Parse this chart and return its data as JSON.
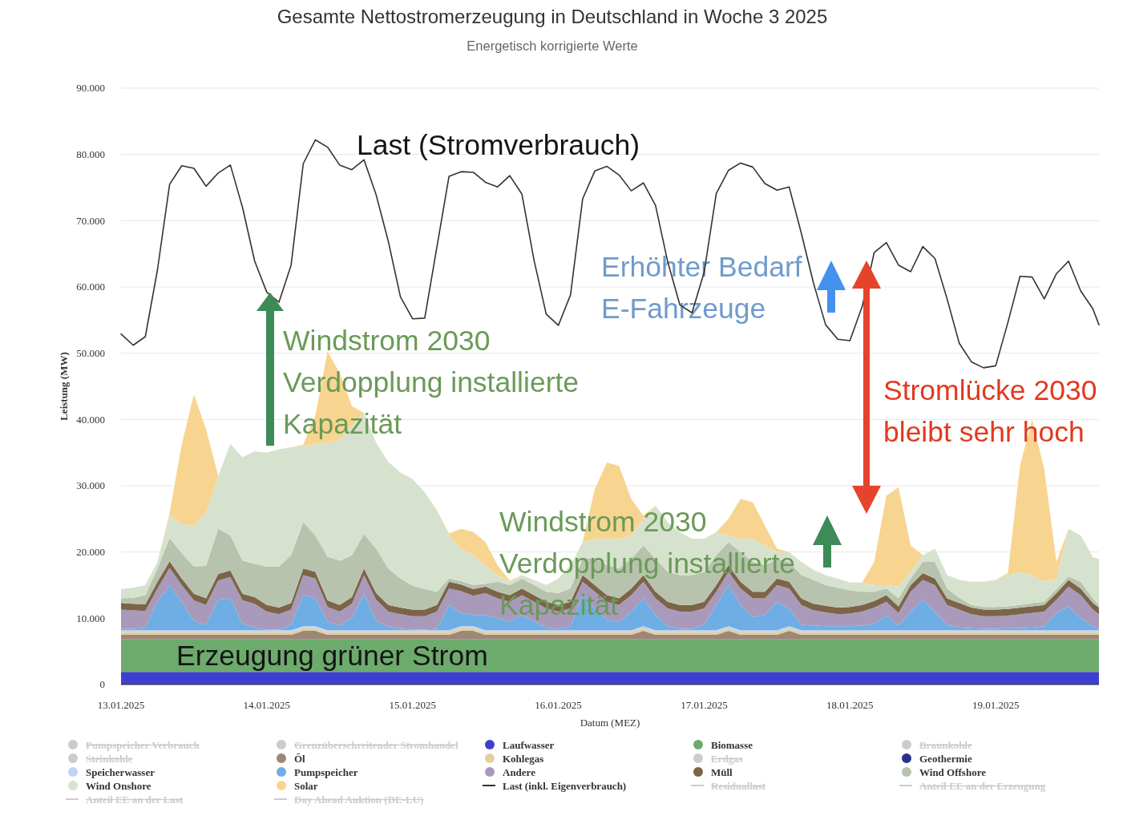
{
  "chart_data": {
    "type": "area",
    "title": "Gesamte Nettostromerzeugung in Deutschland in Woche 3 2025",
    "subtitle": "Energetisch korrigierte Werte",
    "xlabel": "Datum (MEZ)",
    "ylabel": "Leistung (MW)",
    "x": [
      "2025-01-13T00:00",
      "2025-01-13T02:00",
      "2025-01-13T04:00",
      "2025-01-13T06:00",
      "2025-01-13T08:00",
      "2025-01-13T10:00",
      "2025-01-13T12:00",
      "2025-01-13T14:00",
      "2025-01-13T16:00",
      "2025-01-13T18:00",
      "2025-01-13T20:00",
      "2025-01-13T22:00",
      "2025-01-14T00:00",
      "2025-01-14T02:00",
      "2025-01-14T04:00",
      "2025-01-14T06:00",
      "2025-01-14T08:00",
      "2025-01-14T10:00",
      "2025-01-14T12:00",
      "2025-01-14T14:00",
      "2025-01-14T16:00",
      "2025-01-14T18:00",
      "2025-01-14T20:00",
      "2025-01-14T22:00",
      "2025-01-15T00:00",
      "2025-01-15T02:00",
      "2025-01-15T04:00",
      "2025-01-15T06:00",
      "2025-01-15T08:00",
      "2025-01-15T10:00",
      "2025-01-15T12:00",
      "2025-01-15T14:00",
      "2025-01-15T16:00",
      "2025-01-15T18:00",
      "2025-01-15T20:00",
      "2025-01-15T22:00",
      "2025-01-16T00:00",
      "2025-01-16T02:00",
      "2025-01-16T04:00",
      "2025-01-16T06:00",
      "2025-01-16T08:00",
      "2025-01-16T10:00",
      "2025-01-16T12:00",
      "2025-01-16T14:00",
      "2025-01-16T16:00",
      "2025-01-16T18:00",
      "2025-01-16T20:00",
      "2025-01-16T22:00",
      "2025-01-17T00:00",
      "2025-01-17T02:00",
      "2025-01-17T04:00",
      "2025-01-17T06:00",
      "2025-01-17T08:00",
      "2025-01-17T10:00",
      "2025-01-17T12:00",
      "2025-01-17T14:00",
      "2025-01-17T16:00",
      "2025-01-17T18:00",
      "2025-01-17T20:00",
      "2025-01-17T22:00",
      "2025-01-18T00:00",
      "2025-01-18T02:00",
      "2025-01-18T04:00",
      "2025-01-18T06:00",
      "2025-01-18T08:00",
      "2025-01-18T10:00",
      "2025-01-18T12:00",
      "2025-01-18T14:00",
      "2025-01-18T16:00",
      "2025-01-18T18:00",
      "2025-01-18T20:00",
      "2025-01-18T22:00",
      "2025-01-19T00:00",
      "2025-01-19T02:00",
      "2025-01-19T04:00",
      "2025-01-19T06:00",
      "2025-01-19T08:00",
      "2025-01-19T10:00",
      "2025-01-19T12:00",
      "2025-01-19T14:00",
      "2025-01-19T16:00",
      "2025-01-19T17:00"
    ],
    "xlim": [
      "2025-01-13T00:00",
      "2025-01-19T17:00"
    ],
    "xticks": [
      {
        "value": "2025-01-13",
        "label": "13.01.2025"
      },
      {
        "value": "2025-01-14",
        "label": "14.01.2025"
      },
      {
        "value": "2025-01-15",
        "label": "15.01.2025"
      },
      {
        "value": "2025-01-16",
        "label": "16.01.2025"
      },
      {
        "value": "2025-01-17",
        "label": "17.01.2025"
      },
      {
        "value": "2025-01-18",
        "label": "18.01.2025"
      },
      {
        "value": "2025-01-19",
        "label": "19.01.2025"
      }
    ],
    "ylim": [
      0,
      90000
    ],
    "yticks": [
      0,
      {
        "value": 10000,
        "label": "10.000"
      },
      {
        "value": 20000,
        "label": "20.000"
      },
      {
        "value": 30000,
        "label": "30.000"
      },
      {
        "value": 40000,
        "label": "40.000"
      },
      {
        "value": 50000,
        "label": "50.000"
      },
      {
        "value": 60000,
        "label": "60.000"
      },
      {
        "value": 70000,
        "label": "70.000"
      },
      {
        "value": 80000,
        "label": "80.000"
      },
      {
        "value": 90000,
        "label": "90.000"
      }
    ],
    "grid": "y",
    "legend": "bottom",
    "stacked": true,
    "series": [
      {
        "name": "Pumpspeicher Verbrauch",
        "color": "#cccccc",
        "values": [
          null,
          null,
          null,
          null,
          null,
          null,
          null,
          null,
          null,
          null,
          null,
          null,
          null,
          null,
          null,
          null,
          null,
          null,
          null,
          null,
          null,
          null,
          null,
          null,
          null,
          null,
          null,
          null,
          null,
          null,
          null,
          null,
          null,
          null,
          null,
          null,
          null,
          null,
          null,
          null,
          null,
          null,
          null,
          null,
          null,
          null,
          null,
          null,
          null,
          null,
          null,
          null,
          null,
          null,
          null,
          null,
          null,
          null,
          null,
          null,
          null,
          null,
          null,
          null,
          null,
          null,
          null,
          null,
          null,
          null,
          null,
          null,
          null,
          null,
          null,
          null,
          null,
          null,
          null,
          null,
          null,
          null
        ]
      },
      {
        "name": "Grenzüberschreitender Stromhandel",
        "color": "#cccccc",
        "values": [
          null,
          null,
          null,
          null,
          null,
          null,
          null,
          null,
          null,
          null,
          null,
          null,
          null,
          null,
          null,
          null,
          null,
          null,
          null,
          null,
          null,
          null,
          null,
          null,
          null,
          null,
          null,
          null,
          null,
          null,
          null,
          null,
          null,
          null,
          null,
          null,
          null,
          null,
          null,
          null,
          null,
          null,
          null,
          null,
          null,
          null,
          null,
          null,
          null,
          null,
          null,
          null,
          null,
          null,
          null,
          null,
          null,
          null,
          null,
          null,
          null,
          null,
          null,
          null,
          null,
          null,
          null,
          null,
          null,
          null,
          null,
          null,
          null,
          null,
          null,
          null,
          null,
          null,
          null,
          null,
          null,
          null
        ]
      },
      {
        "name": "Laufwasser",
        "color": "#3f3fcf",
        "values": [
          1900,
          1900,
          1900,
          1900,
          1900,
          1900,
          1900,
          1900,
          1900,
          1900,
          1900,
          1900,
          1900,
          1900,
          1900,
          1900,
          1900,
          1900,
          1900,
          1900,
          1900,
          1900,
          1900,
          1900,
          1900,
          1900,
          1900,
          1900,
          1900,
          1900,
          1900,
          1900,
          1900,
          1900,
          1900,
          1900,
          1900,
          1900,
          1900,
          1900,
          1900,
          1900,
          1900,
          1900,
          1900,
          1900,
          1900,
          1900,
          1900,
          1900,
          1900,
          1900,
          1900,
          1900,
          1900,
          1900,
          1900,
          1900,
          1900,
          1900,
          1900,
          1900,
          1900,
          1900,
          1900,
          1900,
          1900,
          1900,
          1900,
          1900,
          1900,
          1900,
          1900,
          1900,
          1900,
          1900,
          1900,
          1900,
          1900,
          1900,
          1900,
          1900
        ]
      },
      {
        "name": "Biomasse",
        "color": "#6dab6d",
        "values": [
          4900,
          4900,
          4900,
          4900,
          4900,
          4900,
          4900,
          4900,
          4900,
          4900,
          4900,
          4900,
          4900,
          4900,
          4900,
          4900,
          4900,
          4900,
          4900,
          4900,
          4900,
          4900,
          4900,
          4900,
          4900,
          4900,
          4900,
          4900,
          4900,
          4900,
          4900,
          4900,
          4900,
          4900,
          4900,
          4900,
          4900,
          4900,
          4900,
          4900,
          4900,
          4900,
          4900,
          4900,
          4900,
          4900,
          4900,
          4900,
          4900,
          4900,
          4900,
          4900,
          4900,
          4900,
          4900,
          4900,
          4900,
          4900,
          4900,
          4900,
          4900,
          4900,
          4900,
          4900,
          4900,
          4900,
          4900,
          4900,
          4900,
          4900,
          4900,
          4900,
          4900,
          4900,
          4900,
          4900,
          4900,
          4900,
          4900,
          4900,
          4900,
          4900
        ]
      },
      {
        "name": "Braunkohle",
        "color": "#cccccc",
        "values": [
          null,
          null,
          null,
          null,
          null,
          null,
          null,
          null,
          null,
          null,
          null,
          null,
          null,
          null,
          null,
          null,
          null,
          null,
          null,
          null,
          null,
          null,
          null,
          null,
          null,
          null,
          null,
          null,
          null,
          null,
          null,
          null,
          null,
          null,
          null,
          null,
          null,
          null,
          null,
          null,
          null,
          null,
          null,
          null,
          null,
          null,
          null,
          null,
          null,
          null,
          null,
          null,
          null,
          null,
          null,
          null,
          null,
          null,
          null,
          null,
          null,
          null,
          null,
          null,
          null,
          null,
          null,
          null,
          null,
          null,
          null,
          null,
          null,
          null,
          null,
          null,
          null,
          null,
          null,
          null,
          null,
          null
        ]
      },
      {
        "name": "Steinkohle",
        "color": "#cccccc",
        "values": [
          null,
          null,
          null,
          null,
          null,
          null,
          null,
          null,
          null,
          null,
          null,
          null,
          null,
          null,
          null,
          null,
          null,
          null,
          null,
          null,
          null,
          null,
          null,
          null,
          null,
          null,
          null,
          null,
          null,
          null,
          null,
          null,
          null,
          null,
          null,
          null,
          null,
          null,
          null,
          null,
          null,
          null,
          null,
          null,
          null,
          null,
          null,
          null,
          null,
          null,
          null,
          null,
          null,
          null,
          null,
          null,
          null,
          null,
          null,
          null,
          null,
          null,
          null,
          null,
          null,
          null,
          null,
          null,
          null,
          null,
          null,
          null,
          null,
          null,
          null,
          null,
          null,
          null,
          null,
          null,
          null,
          null
        ]
      },
      {
        "name": "Öl",
        "color": "#9c8878",
        "values": [
          700,
          700,
          700,
          700,
          700,
          700,
          700,
          700,
          700,
          700,
          700,
          700,
          700,
          700,
          700,
          1300,
          1300,
          700,
          700,
          700,
          700,
          700,
          700,
          700,
          700,
          700,
          700,
          700,
          1300,
          1300,
          700,
          700,
          700,
          700,
          700,
          700,
          700,
          700,
          700,
          700,
          700,
          700,
          700,
          1300,
          700,
          700,
          700,
          700,
          700,
          700,
          1300,
          700,
          700,
          700,
          700,
          1300,
          700,
          700,
          700,
          700,
          700,
          700,
          700,
          700,
          700,
          700,
          700,
          700,
          700,
          700,
          700,
          700,
          700,
          700,
          700,
          700,
          700,
          700,
          700,
          700,
          700,
          700
        ]
      },
      {
        "name": "Kohlegas",
        "color": "#e3cf9c",
        "values": [
          400,
          400,
          400,
          400,
          400,
          400,
          400,
          400,
          400,
          400,
          400,
          400,
          400,
          400,
          400,
          400,
          400,
          400,
          400,
          400,
          400,
          400,
          400,
          400,
          400,
          400,
          400,
          400,
          400,
          400,
          400,
          400,
          400,
          400,
          400,
          400,
          400,
          400,
          400,
          400,
          400,
          400,
          400,
          400,
          400,
          400,
          400,
          400,
          400,
          400,
          400,
          400,
          400,
          400,
          400,
          400,
          400,
          400,
          400,
          400,
          400,
          400,
          400,
          400,
          400,
          400,
          400,
          400,
          400,
          400,
          400,
          400,
          400,
          400,
          400,
          400,
          400,
          400,
          400,
          400,
          400,
          400
        ]
      },
      {
        "name": "Erdgas",
        "color": "#cccccc",
        "values": [
          null,
          null,
          null,
          null,
          null,
          null,
          null,
          null,
          null,
          null,
          null,
          null,
          null,
          null,
          null,
          null,
          null,
          null,
          null,
          null,
          null,
          null,
          null,
          null,
          null,
          null,
          null,
          null,
          null,
          null,
          null,
          null,
          null,
          null,
          null,
          null,
          null,
          null,
          null,
          null,
          null,
          null,
          null,
          null,
          null,
          null,
          null,
          null,
          null,
          null,
          null,
          null,
          null,
          null,
          null,
          null,
          null,
          null,
          null,
          null,
          null,
          null,
          null,
          null,
          null,
          null,
          null,
          null,
          null,
          null,
          null,
          null,
          null,
          null,
          null,
          null,
          null,
          null,
          null,
          null,
          null,
          null
        ]
      },
      {
        "name": "Geothermie",
        "color": "#2b2f8c",
        "values": [
          null,
          null,
          null,
          null,
          null,
          null,
          null,
          null,
          null,
          null,
          null,
          null,
          null,
          null,
          null,
          null,
          null,
          null,
          null,
          null,
          null,
          null,
          null,
          null,
          null,
          null,
          null,
          null,
          null,
          null,
          null,
          null,
          null,
          null,
          null,
          null,
          null,
          null,
          null,
          null,
          null,
          null,
          null,
          null,
          null,
          null,
          null,
          null,
          null,
          null,
          null,
          null,
          null,
          null,
          null,
          null,
          null,
          null,
          null,
          null,
          null,
          null,
          null,
          null,
          null,
          null,
          null,
          null,
          null,
          null,
          null,
          null,
          null,
          null,
          null,
          null,
          null,
          null,
          null,
          null,
          null,
          null
        ]
      },
      {
        "name": "Speicherwasser",
        "color": "#c3d3f5",
        "values": [
          300,
          300,
          300,
          300,
          300,
          300,
          300,
          300,
          300,
          300,
          300,
          300,
          300,
          300,
          300,
          300,
          300,
          300,
          300,
          300,
          300,
          300,
          300,
          300,
          300,
          300,
          300,
          300,
          300,
          300,
          300,
          300,
          300,
          300,
          300,
          300,
          300,
          300,
          300,
          300,
          300,
          300,
          300,
          300,
          300,
          300,
          300,
          300,
          300,
          300,
          300,
          300,
          300,
          300,
          300,
          300,
          300,
          300,
          300,
          300,
          300,
          300,
          300,
          300,
          300,
          300,
          300,
          300,
          300,
          300,
          300,
          300,
          300,
          300,
          300,
          300,
          300,
          300,
          300,
          300,
          300,
          300
        ]
      },
      {
        "name": "Pumpspeicher",
        "color": "#6eaee4",
        "values": [
          200,
          200,
          400,
          4300,
          6800,
          4300,
          1400,
          800,
          4600,
          4800,
          1000,
          400,
          100,
          100,
          800,
          4700,
          4200,
          1300,
          700,
          1800,
          5500,
          1400,
          500,
          200,
          100,
          100,
          200,
          3800,
          2000,
          1700,
          2300,
          1800,
          1300,
          2300,
          1300,
          400,
          200,
          600,
          5300,
          3300,
          1600,
          1200,
          2800,
          4200,
          2300,
          600,
          200,
          200,
          800,
          3800,
          6200,
          3800,
          2000,
          2300,
          4300,
          2700,
          800,
          700,
          600,
          600,
          600,
          700,
          1000,
          2200,
          700,
          2800,
          4600,
          2800,
          800,
          400,
          300,
          200,
          200,
          300,
          300,
          400,
          600,
          2600,
          3600,
          1800,
          600,
          200
        ]
      },
      {
        "name": "Andere",
        "color": "#a99abc",
        "values": [
          2900,
          2800,
          2500,
          2000,
          2600,
          2500,
          3100,
          3000,
          2900,
          3200,
          3500,
          3600,
          2700,
          2300,
          2300,
          3000,
          3000,
          2200,
          2100,
          2200,
          2800,
          3200,
          2300,
          2200,
          2000,
          2000,
          2600,
          2500,
          3300,
          2900,
          3300,
          3000,
          3000,
          3000,
          3000,
          2900,
          2600,
          2700,
          2000,
          2500,
          2700,
          2600,
          2500,
          2500,
          2500,
          2700,
          2600,
          2600,
          2500,
          2000,
          2000,
          2500,
          2800,
          2500,
          2500,
          3000,
          3000,
          2300,
          2100,
          1800,
          1900,
          2100,
          2400,
          2100,
          1900,
          3000,
          3000,
          4000,
          3000,
          2700,
          2100,
          1900,
          1900,
          1900,
          2100,
          2200,
          2200,
          2000,
          3000,
          3500,
          2500,
          2200
        ]
      },
      {
        "name": "Müll",
        "color": "#7c6449",
        "values": [
          1000,
          1000,
          1000,
          1000,
          1000,
          1000,
          1000,
          1000,
          1000,
          1000,
          1000,
          1000,
          1000,
          1000,
          1000,
          1000,
          1000,
          1000,
          1000,
          1000,
          1000,
          1000,
          1000,
          1000,
          1000,
          1000,
          1000,
          1000,
          1000,
          1000,
          1000,
          1000,
          1000,
          1000,
          1000,
          1000,
          1000,
          1000,
          1000,
          1000,
          1000,
          1000,
          1000,
          1000,
          1000,
          1000,
          1000,
          1000,
          1000,
          1000,
          1000,
          1000,
          1000,
          1000,
          1000,
          1000,
          1000,
          1000,
          1000,
          1000,
          1000,
          1000,
          1000,
          1000,
          1000,
          1000,
          1000,
          1000,
          1000,
          1000,
          1000,
          1000,
          1000,
          1000,
          1000,
          1000,
          1000,
          1000,
          1000,
          1000,
          1000,
          1000
        ]
      },
      {
        "name": "Wind Offshore",
        "color": "#b7c3ad",
        "values": [
          700,
          900,
          1400,
          2000,
          3500,
          3800,
          4100,
          4900,
          6800,
          5300,
          5000,
          5000,
          5800,
          6200,
          7200,
          7000,
          5500,
          6600,
          6700,
          6300,
          5200,
          6700,
          5500,
          4400,
          3600,
          3100,
          2000,
          500,
          500,
          600,
          400,
          1500,
          1500,
          1500,
          1500,
          1500,
          1800,
          2000,
          2500,
          4000,
          4500,
          4500,
          4500,
          4500,
          5000,
          4500,
          4500,
          4500,
          4500,
          4500,
          3500,
          4500,
          4500,
          4000,
          3000,
          3000,
          3500,
          3600,
          3100,
          3000,
          2500,
          2000,
          1400,
          1000,
          1200,
          1000,
          1700,
          2500,
          1500,
          800,
          400,
          400,
          400,
          400,
          400,
          500,
          500,
          600,
          500,
          1000,
          700,
          400
        ]
      },
      {
        "name": "Wind Onshore",
        "color": "#d6e2cd",
        "values": [
          1400,
          1500,
          1500,
          1000,
          3400,
          4400,
          6200,
          8100,
          8000,
          13800,
          15600,
          17000,
          17200,
          17700,
          16300,
          11500,
          13800,
          17200,
          18300,
          19500,
          18300,
          16000,
          16100,
          16000,
          16100,
          14600,
          12300,
          6500,
          4900,
          4500,
          2800,
          1000,
          500,
          500,
          800,
          1000,
          2200,
          3500,
          2500,
          3000,
          4000,
          4500,
          3500,
          4000,
          8000,
          7500,
          6500,
          5500,
          5000,
          3500,
          1000,
          2000,
          3500,
          3000,
          1000,
          1500,
          2000,
          1500,
          1500,
          1400,
          1200,
          1400,
          1000,
          500,
          1800,
          1000,
          1000,
          2000,
          2000,
          2700,
          3500,
          3800,
          4100,
          4700,
          5000,
          4200,
          3000,
          1600,
          7200,
          7000,
          6200,
          7000
        ]
      },
      {
        "name": "Solar",
        "color": "#f7d590",
        "values": [
          0,
          0,
          0,
          0,
          400,
          12100,
          19800,
          12500,
          0,
          0,
          0,
          0,
          0,
          0,
          0,
          200,
          4300,
          13800,
          10000,
          3000,
          0,
          0,
          0,
          0,
          0,
          0,
          0,
          300,
          3000,
          3500,
          3500,
          1500,
          200,
          0,
          0,
          0,
          0,
          0,
          0,
          7500,
          11500,
          11000,
          5500,
          500,
          0,
          0,
          0,
          0,
          0,
          0,
          2500,
          6000,
          5500,
          3000,
          500,
          0,
          0,
          0,
          0,
          0,
          0,
          0,
          3500,
          13500,
          15000,
          4000,
          0,
          0,
          0,
          0,
          0,
          0,
          0,
          300,
          16000,
          23500,
          17000,
          2500,
          0,
          0,
          0,
          0
        ]
      },
      {
        "name": "Last (inkl. Eigenverbrauch)",
        "type": "line",
        "color": "#333333",
        "values": [
          52900,
          51200,
          52500,
          62600,
          75500,
          78300,
          77900,
          75200,
          77200,
          78400,
          72000,
          63900,
          59200,
          57700,
          63300,
          78600,
          82200,
          81100,
          78400,
          77700,
          79200,
          73900,
          66900,
          58500,
          55200,
          55300,
          66000,
          76700,
          77400,
          77300,
          75800,
          75100,
          76800,
          74000,
          64000,
          55900,
          54200,
          58800,
          73300,
          77500,
          78200,
          76900,
          74500,
          75700,
          72300,
          63800,
          57300,
          56100,
          62200,
          74100,
          77600,
          78700,
          78100,
          75600,
          74600,
          75100,
          68100,
          60600,
          54300,
          52100,
          51900,
          57000,
          65200,
          66700,
          63300,
          62300,
          66100,
          64300,
          58200,
          51500,
          48700,
          47800,
          48100,
          54600,
          61600,
          61500,
          58200,
          62000,
          63900,
          59400,
          56700,
          54300
        ]
      },
      {
        "name": "Residuallast",
        "type": "line",
        "color": "#cccccc",
        "values": [
          null,
          null,
          null,
          null,
          null,
          null,
          null,
          null,
          null,
          null,
          null,
          null,
          null,
          null,
          null,
          null,
          null,
          null,
          null,
          null,
          null,
          null,
          null,
          null,
          null,
          null,
          null,
          null,
          null,
          null,
          null,
          null,
          null,
          null,
          null,
          null,
          null,
          null,
          null,
          null,
          null,
          null,
          null,
          null,
          null,
          null,
          null,
          null,
          null,
          null,
          null,
          null,
          null,
          null,
          null,
          null,
          null,
          null,
          null,
          null,
          null,
          null,
          null,
          null,
          null,
          null,
          null,
          null,
          null,
          null,
          null,
          null,
          null,
          null,
          null,
          null,
          null,
          null,
          null,
          null,
          null,
          null
        ]
      },
      {
        "name": "Anteil EE an der Erzeugung",
        "type": "line",
        "color": "#cccccc",
        "values": [
          null,
          null,
          null,
          null,
          null,
          null,
          null,
          null,
          null,
          null,
          null,
          null,
          null,
          null,
          null,
          null,
          null,
          null,
          null,
          null,
          null,
          null,
          null,
          null,
          null,
          null,
          null,
          null,
          null,
          null,
          null,
          null,
          null,
          null,
          null,
          null,
          null,
          null,
          null,
          null,
          null,
          null,
          null,
          null,
          null,
          null,
          null,
          null,
          null,
          null,
          null,
          null,
          null,
          null,
          null,
          null,
          null,
          null,
          null,
          null,
          null,
          null,
          null,
          null,
          null,
          null,
          null,
          null,
          null,
          null,
          null,
          null,
          null,
          null,
          null,
          null,
          null,
          null,
          null,
          null,
          null,
          null
        ]
      },
      {
        "name": "Anteil EE an der Last",
        "type": "line",
        "color": "#cccccc",
        "values": [
          null,
          null,
          null,
          null,
          null,
          null,
          null,
          null,
          null,
          null,
          null,
          null,
          null,
          null,
          null,
          null,
          null,
          null,
          null,
          null,
          null,
          null,
          null,
          null,
          null,
          null,
          null,
          null,
          null,
          null,
          null,
          null,
          null,
          null,
          null,
          null,
          null,
          null,
          null,
          null,
          null,
          null,
          null,
          null,
          null,
          null,
          null,
          null,
          null,
          null,
          null,
          null,
          null,
          null,
          null,
          null,
          null,
          null,
          null,
          null,
          null,
          null,
          null,
          null,
          null,
          null,
          null,
          null,
          null,
          null,
          null,
          null,
          null,
          null,
          null,
          null,
          null,
          null,
          null,
          null,
          null,
          null
        ]
      },
      {
        "name": "Day Ahead Auktion (DE-LU)",
        "type": "line",
        "color": "#cccccc",
        "values": [
          null,
          null,
          null,
          null,
          null,
          null,
          null,
          null,
          null,
          null,
          null,
          null,
          null,
          null,
          null,
          null,
          null,
          null,
          null,
          null,
          null,
          null,
          null,
          null,
          null,
          null,
          null,
          null,
          null,
          null,
          null,
          null,
          null,
          null,
          null,
          null,
          null,
          null,
          null,
          null,
          null,
          null,
          null,
          null,
          null,
          null,
          null,
          null,
          null,
          null,
          null,
          null,
          null,
          null,
          null,
          null,
          null,
          null,
          null,
          null,
          null,
          null,
          null,
          null,
          null,
          null,
          null,
          null,
          null,
          null,
          null,
          null,
          null,
          null,
          null,
          null,
          null,
          null,
          null,
          null,
          null,
          null
        ]
      }
    ],
    "annotations": [
      "Last (Stromverbrauch)",
      "Erhöhter Bedarf\nE-Fahrzeuge",
      "Windstrom 2030\nVerdopplung installierte\nKapazität",
      "Stromlücke 2030\nbleibt sehr hoch",
      "Windstrom 2030\nVerdopplung installierte\nKapazität",
      "Erzeugung grüner Strom"
    ]
  }
}
